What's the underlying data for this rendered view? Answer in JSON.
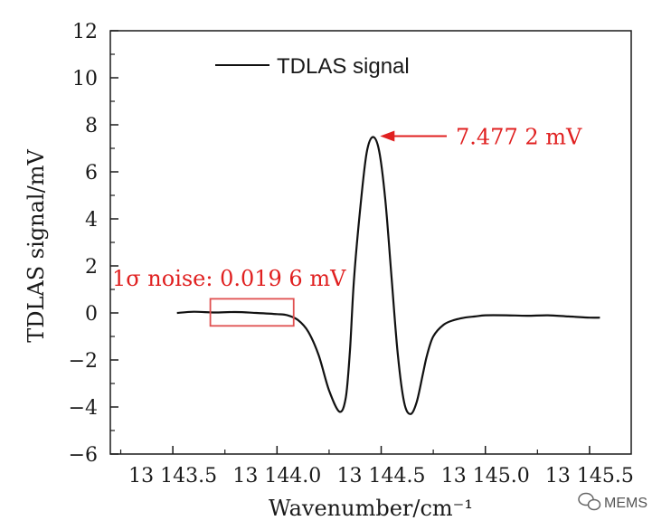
{
  "chart_data": {
    "type": "line",
    "title": "",
    "xlabel": "Wavenumber/cm⁻¹",
    "ylabel": "TDLAS signal/mV",
    "xlim": [
      13143.2,
      13145.7
    ],
    "ylim": [
      -6,
      12
    ],
    "x_ticks": [
      13143.5,
      13144.0,
      13144.5,
      13145.0,
      13145.5
    ],
    "x_tick_labels": [
      "13 143.5",
      "13 144.0",
      "13 144.5",
      "13 145.0",
      "13 145.5"
    ],
    "y_ticks": [
      -6,
      -4,
      -2,
      0,
      2,
      4,
      6,
      8,
      10,
      12
    ],
    "y_tick_labels": [
      "−6",
      "−4",
      "−2",
      "0",
      "2",
      "4",
      "6",
      "8",
      "10",
      "12"
    ],
    "grid": false,
    "legend_position": "top-left",
    "series": [
      {
        "name": "TDLAS signal",
        "color": "#111111",
        "x": [
          13143.52,
          13143.6,
          13143.7,
          13143.8,
          13143.9,
          13144.0,
          13144.05,
          13144.1,
          13144.15,
          13144.2,
          13144.25,
          13144.3,
          13144.33,
          13144.35,
          13144.37,
          13144.4,
          13144.43,
          13144.46,
          13144.49,
          13144.52,
          13144.55,
          13144.58,
          13144.61,
          13144.64,
          13144.67,
          13144.7,
          13144.72,
          13144.75,
          13144.8,
          13144.85,
          13144.9,
          13144.95,
          13145.0,
          13145.1,
          13145.2,
          13145.3,
          13145.4,
          13145.5,
          13145.55
        ],
        "y": [
          0.0,
          0.05,
          0.02,
          0.04,
          0.0,
          -0.05,
          -0.1,
          -0.3,
          -0.8,
          -1.8,
          -3.3,
          -4.2,
          -3.6,
          -1.6,
          1.5,
          4.5,
          6.8,
          7.48,
          6.9,
          4.8,
          1.5,
          -1.8,
          -3.8,
          -4.3,
          -3.8,
          -2.6,
          -1.8,
          -1.0,
          -0.5,
          -0.3,
          -0.2,
          -0.15,
          -0.1,
          -0.1,
          -0.12,
          -0.1,
          -0.15,
          -0.2,
          -0.2
        ]
      }
    ],
    "annotations": [
      {
        "text": "7.477 2 mV",
        "x": 13144.46,
        "y": 7.48,
        "color": "#e02020",
        "arrow": true
      },
      {
        "text": "1σ noise: 0.019 6 mV",
        "color": "#e02020",
        "box_x": [
          13143.68,
          13144.08
        ],
        "box_y": [
          -0.55,
          0.6
        ]
      }
    ]
  },
  "watermark": "MEMS"
}
